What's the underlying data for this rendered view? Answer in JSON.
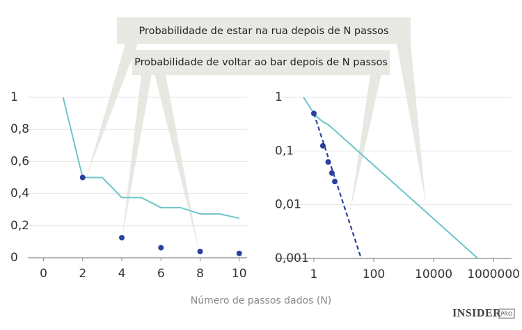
{
  "chart_data": [
    {
      "type": "line",
      "xlabel": "Número de passos dados (N)",
      "annotations": [
        "Probabilidade de estar na rua depois de N passos",
        "Probabilidade de voltar ao bar depois de N passos"
      ],
      "xlim": [
        -0.8,
        10.4
      ],
      "ylim": [
        0,
        1
      ],
      "xticks": [
        0,
        2,
        4,
        6,
        8,
        10
      ],
      "yticks": [
        0,
        {
          "value": 0.2,
          "label": "0,2"
        },
        {
          "value": 0.4,
          "label": "0,4"
        },
        {
          "value": 0.6,
          "label": "0,6"
        },
        {
          "value": 0.8,
          "label": "0,8"
        },
        1
      ],
      "grid": true,
      "series": [
        {
          "mode": "line",
          "color": "#6cc5c9",
          "x": [
            1,
            2,
            3,
            4,
            5,
            6,
            7,
            8,
            9,
            10
          ],
          "values": [
            1,
            0.5,
            0.5,
            0.375,
            0.375,
            0.3125,
            0.3125,
            0.273,
            0.273,
            0.246
          ]
        },
        {
          "mode": "markers",
          "color": "#2b3f9e",
          "x": [
            2,
            4,
            6,
            8,
            10
          ],
          "values": [
            0.5,
            0.125,
            0.0625,
            0.039,
            0.027
          ]
        }
      ]
    },
    {
      "type": "line",
      "log": true,
      "xlim": [
        0.05,
        4000000
      ],
      "ylim": [
        0.001,
        1
      ],
      "xticks": [
        1,
        100,
        10000,
        1000000
      ],
      "yticks": [
        {
          "value": 0.001,
          "label": "0,001"
        },
        {
          "value": 0.01,
          "label": "0,01"
        },
        {
          "value": 0.1,
          "label": "0,1"
        },
        1
      ],
      "grid": true,
      "series": [
        {
          "mode": "line",
          "color": "#6cc5c9",
          "x": [
            0.45,
            1,
            1.5,
            2,
            3,
            4,
            300000
          ],
          "values": [
            1,
            0.5,
            0.4,
            0.35,
            0.31,
            0.27,
            0.001
          ]
        },
        {
          "mode": "dashed",
          "color": "#2b3f9e",
          "x": [
            1,
            38
          ],
          "values": [
            0.5,
            0.001
          ]
        },
        {
          "mode": "markers",
          "color": "#2b3f9e",
          "x": [
            1,
            2,
            3,
            4,
            5
          ],
          "values": [
            0.5,
            0.125,
            0.0625,
            0.039,
            0.027
          ]
        }
      ]
    }
  ],
  "brand": [
    "INSIDER",
    "PRO"
  ]
}
